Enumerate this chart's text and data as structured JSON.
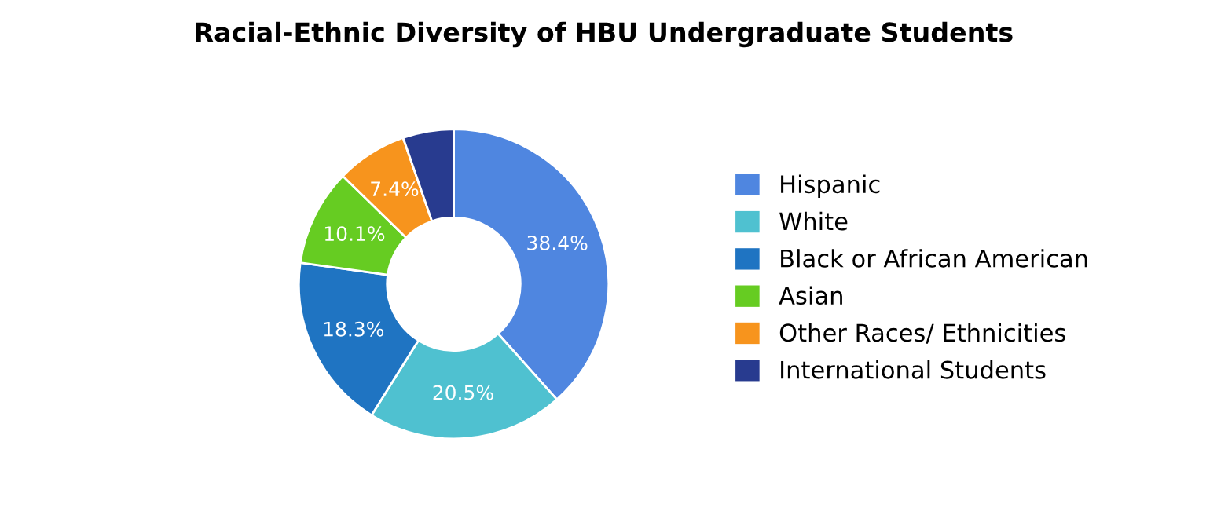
{
  "chart_data": {
    "type": "donut",
    "title": "Racial-Ethnic Diversity of HBU Undergraduate Students",
    "categories": [
      "Hispanic",
      "White",
      "Black or African American",
      "Asian",
      "Other Races/ Ethnicities",
      "International Students"
    ],
    "values": [
      38.4,
      20.5,
      18.3,
      10.1,
      7.4,
      5.3
    ],
    "value_labels": [
      "38.4%",
      "20.5%",
      "18.3%",
      "10.1%",
      "7.4%",
      null
    ],
    "colors": [
      "#4f86e0",
      "#4fc1d0",
      "#1f74c2",
      "#66cc22",
      "#f7941d",
      "#283b8f"
    ],
    "legend": "right"
  }
}
